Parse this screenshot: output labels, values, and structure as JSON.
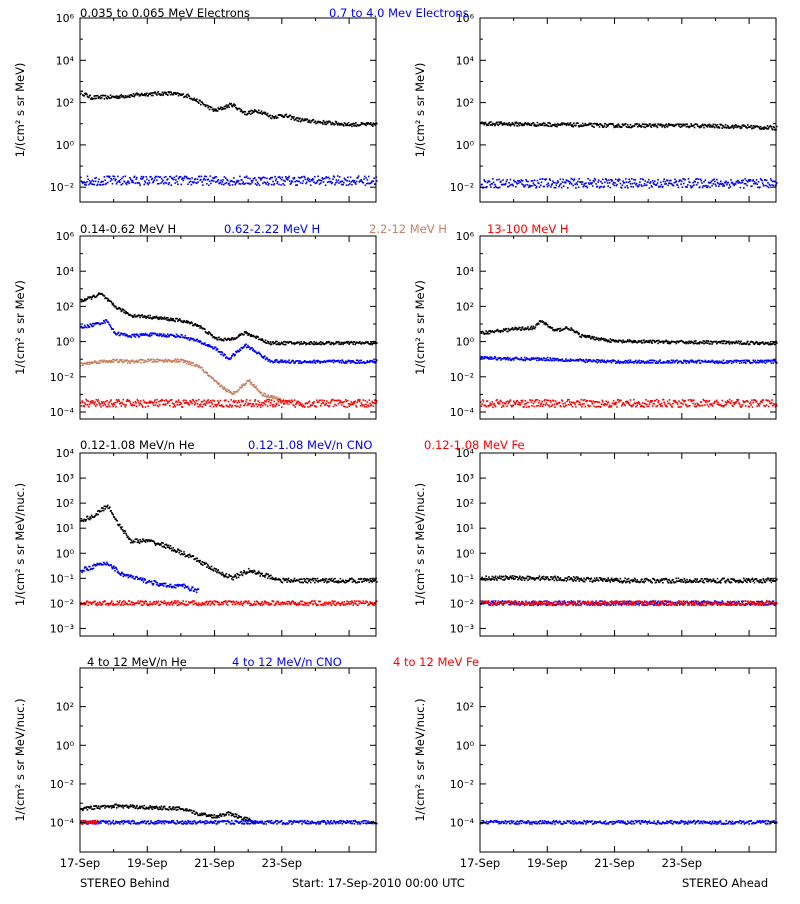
{
  "colors": {
    "black": "#000000",
    "blue": "#0000ff",
    "tan": "#c88060",
    "red": "#ff0000"
  },
  "rows": [
    {
      "labels": [
        {
          "text": "0.035 to 0.065 MeV Electrons",
          "color": "#000000"
        },
        {
          "text": "0.7 to 4.0 Mev Electrons",
          "color": "#0000ff"
        }
      ]
    },
    {
      "labels": [
        {
          "text": "0.14-0.62 MeV H",
          "color": "#000000"
        },
        {
          "text": "0.62-2.22 MeV H",
          "color": "#0000ff"
        },
        {
          "text": "2.2-12 MeV H",
          "color": "#c88060"
        },
        {
          "text": "13-100 MeV H",
          "color": "#ff0000"
        }
      ]
    },
    {
      "labels": [
        {
          "text": "0.12-1.08 MeV/n He",
          "color": "#000000"
        },
        {
          "text": "0.12-1.08 MeV/n CNO",
          "color": "#0000ff"
        },
        {
          "text": "0.12-1.08 MeV Fe",
          "color": "#ff0000"
        }
      ]
    },
    {
      "labels": [
        {
          "text": "4 to 12 MeV/n He",
          "color": "#000000"
        },
        {
          "text": "4 to 12 MeV/n CNO",
          "color": "#0000ff"
        },
        {
          "text": "4 to 12 MeV Fe",
          "color": "#ff0000"
        }
      ]
    }
  ],
  "footer": {
    "left": "STEREO Behind",
    "center": "Start: 17-Sep-2010 00:00 UTC",
    "right": "STEREO Ahead"
  },
  "chart_data": [
    {
      "type": "scatter",
      "row": 0,
      "col": 0,
      "ylabel": "1/(cm² s sr MeV)",
      "yscale": "log",
      "ylim": [
        0.002,
        1000000
      ],
      "ytick_exp": [
        -2,
        0,
        2,
        4,
        6
      ],
      "x_ticks": [
        "17-Sep",
        "19-Sep",
        "21-Sep",
        "23-Sep"
      ],
      "series": [
        {
          "name": "0.035 to 0.065 MeV Electrons",
          "color": "#000000",
          "x": [
            0,
            0.3,
            1,
            2,
            2.6,
            3.2,
            4,
            4.5,
            4.9,
            5.3,
            5.7,
            6,
            6.5,
            7,
            8,
            8.8
          ],
          "y": [
            300,
            170,
            180,
            250,
            270,
            200,
            40,
            80,
            30,
            40,
            20,
            25,
            15,
            12,
            9,
            9
          ]
        },
        {
          "name": "0.7 to 4.0 Mev Electrons",
          "color": "#0000ff",
          "x": [
            0,
            2,
            4,
            6,
            8,
            8.8
          ],
          "y": [
            0.02,
            0.02,
            0.02,
            0.02,
            0.02,
            0.02
          ]
        }
      ]
    },
    {
      "type": "scatter",
      "row": 0,
      "col": 1,
      "ylabel": "1/(cm² s sr MeV)",
      "yscale": "log",
      "ylim": [
        0.002,
        1000000
      ],
      "ytick_exp": [
        -2,
        0,
        2,
        4,
        6
      ],
      "x_ticks": [
        "17-Sep",
        "19-Sep",
        "21-Sep",
        "23-Sep"
      ],
      "series": [
        {
          "name": "0.035 to 0.065 MeV Electrons",
          "color": "#000000",
          "x": [
            0,
            2,
            4,
            6,
            8,
            8.8
          ],
          "y": [
            10,
            9,
            8,
            8,
            7,
            6
          ]
        },
        {
          "name": "0.7 to 4.0 Mev Electrons",
          "color": "#0000ff",
          "x": [
            0,
            2,
            4,
            6,
            8,
            8.8
          ],
          "y": [
            0.015,
            0.015,
            0.015,
            0.015,
            0.015,
            0.015
          ]
        }
      ]
    },
    {
      "type": "scatter",
      "row": 1,
      "col": 0,
      "ylabel": "1/(cm² s sr MeV)",
      "yscale": "log",
      "ylim": [
        4e-05,
        1000000
      ],
      "ytick_exp": [
        -4,
        -2,
        0,
        2,
        4,
        6
      ],
      "x_ticks": [
        "17-Sep",
        "19-Sep",
        "21-Sep",
        "23-Sep"
      ],
      "series": [
        {
          "name": "0.14-0.62 MeV H",
          "color": "#000000",
          "x": [
            0,
            0.3,
            0.6,
            1,
            1.5,
            2,
            3,
            3.5,
            4,
            4.4,
            4.9,
            5.3,
            5.6,
            6,
            7,
            8.8
          ],
          "y": [
            200,
            300,
            500,
            100,
            30,
            25,
            15,
            8,
            1.5,
            1.2,
            3,
            1.5,
            0.8,
            0.8,
            0.8,
            0.8
          ]
        },
        {
          "name": "0.62-2.22 MeV H",
          "color": "#0000ff",
          "x": [
            0,
            0.5,
            0.8,
            1,
            1.5,
            2,
            3,
            3.5,
            4,
            4.4,
            4.9,
            5.3,
            5.6,
            6,
            7,
            8.8
          ],
          "y": [
            6,
            10,
            15,
            3,
            2,
            2.5,
            2,
            1,
            0.4,
            0.1,
            0.6,
            0.2,
            0.08,
            0.07,
            0.07,
            0.07
          ]
        },
        {
          "name": "2.2-12 MeV H",
          "color": "#c88060",
          "x": [
            0,
            0.5,
            1,
            1.5,
            2,
            3,
            3.5,
            4,
            4.5,
            5,
            5.4,
            5.8,
            6.2
          ],
          "y": [
            0.05,
            0.07,
            0.08,
            0.07,
            0.08,
            0.08,
            0.04,
            0.005,
            0.001,
            0.006,
            0.001,
            0.0006,
            0.0003
          ]
        },
        {
          "name": "13-100 MeV H",
          "color": "#ff0000",
          "x": [
            0,
            2,
            4,
            6,
            8,
            8.8
          ],
          "y": [
            0.0003,
            0.0003,
            0.0003,
            0.0003,
            0.0003,
            0.0003
          ]
        }
      ]
    },
    {
      "type": "scatter",
      "row": 1,
      "col": 1,
      "ylabel": "1/(cm² s sr MeV)",
      "yscale": "log",
      "ylim": [
        4e-05,
        1000000
      ],
      "ytick_exp": [
        -4,
        -2,
        0,
        2,
        4,
        6
      ],
      "x_ticks": [
        "17-Sep",
        "19-Sep",
        "21-Sep",
        "23-Sep"
      ],
      "series": [
        {
          "name": "0.14-0.62 MeV H",
          "color": "#000000",
          "x": [
            0,
            1,
            1.6,
            1.8,
            2.2,
            2.6,
            3,
            4,
            6,
            8.8
          ],
          "y": [
            3,
            5,
            6,
            15,
            4,
            6,
            2,
            1,
            0.9,
            0.8
          ]
        },
        {
          "name": "0.62-2.22 MeV H",
          "color": "#0000ff",
          "x": [
            0,
            1,
            2,
            3,
            4,
            6,
            8.8
          ],
          "y": [
            0.12,
            0.1,
            0.1,
            0.08,
            0.07,
            0.07,
            0.07
          ]
        },
        {
          "name": "13-100 MeV H",
          "color": "#ff0000",
          "x": [
            0,
            2,
            4,
            6,
            8,
            8.8
          ],
          "y": [
            0.0003,
            0.0003,
            0.0003,
            0.0003,
            0.0003,
            0.0003
          ]
        }
      ]
    },
    {
      "type": "scatter",
      "row": 2,
      "col": 0,
      "ylabel": "1/(cm² s sr MeV/nuc.)",
      "yscale": "log",
      "ylim": [
        0.0005,
        10000
      ],
      "ytick_exp": [
        -3,
        -2,
        -1,
        0,
        1,
        2,
        3,
        4
      ],
      "x_ticks": [
        "17-Sep",
        "19-Sep",
        "21-Sep",
        "23-Sep"
      ],
      "series": [
        {
          "name": "0.12-1.08 MeV/n He",
          "color": "#000000",
          "x": [
            0,
            0.4,
            0.8,
            1.2,
            1.5,
            2,
            2.5,
            3,
            3.5,
            4,
            4.5,
            5,
            6,
            7,
            8,
            8.8
          ],
          "y": [
            20,
            30,
            80,
            10,
            3,
            3,
            2,
            1,
            0.5,
            0.2,
            0.1,
            0.2,
            0.08,
            0.08,
            0.08,
            0.08
          ]
        },
        {
          "name": "0.12-1.08 MeV/n CNO",
          "color": "#0000ff",
          "x": [
            0,
            0.4,
            0.8,
            1.2,
            1.6,
            2.5,
            3,
            3.5
          ],
          "y": [
            0.2,
            0.3,
            0.4,
            0.15,
            0.1,
            0.05,
            0.05,
            0.03
          ]
        },
        {
          "name": "0.12-1.08 MeV Fe",
          "color": "#ff0000",
          "x": [
            0,
            2,
            4,
            6,
            8,
            8.8
          ],
          "y": [
            0.01,
            0.01,
            0.01,
            0.01,
            0.01,
            0.01
          ]
        }
      ]
    },
    {
      "type": "scatter",
      "row": 2,
      "col": 1,
      "ylabel": "1/(cm² s sr MeV/nuc.)",
      "yscale": "log",
      "ylim": [
        0.0005,
        10000
      ],
      "ytick_exp": [
        -3,
        -2,
        -1,
        0,
        1,
        2,
        3,
        4
      ],
      "x_ticks": [
        "17-Sep",
        "19-Sep",
        "21-Sep",
        "23-Sep"
      ],
      "series": [
        {
          "name": "0.12-1.08 MeV/n He",
          "color": "#000000",
          "x": [
            0,
            1,
            2,
            4,
            6,
            8,
            8.8
          ],
          "y": [
            0.1,
            0.1,
            0.1,
            0.08,
            0.08,
            0.08,
            0.08
          ]
        },
        {
          "name": "0.12-1.08 MeV/n CNO",
          "color": "#0000ff",
          "x": [
            0,
            2,
            4,
            6,
            8,
            8.8
          ],
          "y": [
            0.01,
            0.01,
            0.01,
            0.01,
            0.01,
            0.01
          ]
        },
        {
          "name": "0.12-1.08 MeV Fe",
          "color": "#ff0000",
          "x": [
            0,
            2,
            4,
            6,
            8,
            8.8
          ],
          "y": [
            0.01,
            0.01,
            0.01,
            0.01,
            0.01,
            0.01
          ]
        }
      ]
    },
    {
      "type": "scatter",
      "row": 3,
      "col": 0,
      "ylabel": "1/(cm² s sr MeV/nuc.)",
      "yscale": "log",
      "ylim": [
        3e-06,
        10000
      ],
      "ytick_exp": [
        -4,
        -2,
        0,
        2
      ],
      "x_ticks": [
        "17-Sep",
        "19-Sep",
        "21-Sep",
        "23-Sep"
      ],
      "series": [
        {
          "name": "4 to 12 MeV/n He",
          "color": "#000000",
          "x": [
            0,
            1,
            2,
            3,
            3.4,
            4,
            4.4,
            5.2
          ],
          "y": [
            0.0005,
            0.0007,
            0.0006,
            0.0005,
            0.0003,
            0.0002,
            0.0003,
            0.0001
          ]
        },
        {
          "name": "4 to 12 MeV/n CNO",
          "color": "#0000ff",
          "x": [
            0,
            2,
            4,
            6,
            8,
            8.8
          ],
          "y": [
            0.0001,
            0.0001,
            0.0001,
            0.0001,
            0.0001,
            0.0001
          ]
        },
        {
          "name": "4 to 12 MeV Fe",
          "color": "#ff0000",
          "x": [
            0,
            0.5
          ],
          "y": [
            0.0001,
            0.0001
          ]
        }
      ]
    },
    {
      "type": "scatter",
      "row": 3,
      "col": 1,
      "ylabel": "1/(cm² s sr MeV/nuc.)",
      "yscale": "log",
      "ylim": [
        3e-06,
        10000
      ],
      "ytick_exp": [
        -4,
        -2,
        0,
        2
      ],
      "x_ticks": [
        "17-Sep",
        "19-Sep",
        "21-Sep",
        "23-Sep"
      ],
      "series": [
        {
          "name": "4 to 12 MeV/n CNO",
          "color": "#0000ff",
          "x": [
            0,
            2,
            4,
            6,
            8,
            8.8
          ],
          "y": [
            0.0001,
            0.0001,
            0.0001,
            0.0001,
            0.0001,
            0.0001
          ]
        }
      ]
    }
  ]
}
